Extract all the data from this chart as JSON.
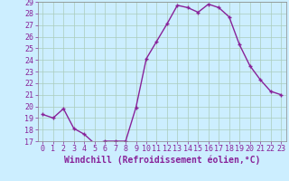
{
  "hours": [
    0,
    1,
    2,
    3,
    4,
    5,
    6,
    7,
    8,
    9,
    10,
    11,
    12,
    13,
    14,
    15,
    16,
    17,
    18,
    19,
    20,
    21,
    22,
    23
  ],
  "values": [
    19.3,
    19.0,
    19.8,
    18.1,
    17.6,
    16.8,
    17.0,
    17.0,
    17.0,
    19.9,
    24.1,
    25.6,
    27.1,
    28.7,
    28.5,
    28.1,
    28.8,
    28.5,
    27.7,
    25.3,
    23.5,
    22.3,
    21.3,
    21.0
  ],
  "line_color": "#882299",
  "marker": "+",
  "xlabel": "Windchill (Refroidissement éolien,°C)",
  "ylim": [
    17,
    29
  ],
  "xlim_min": -0.5,
  "xlim_max": 23.5,
  "yticks": [
    17,
    18,
    19,
    20,
    21,
    22,
    23,
    24,
    25,
    26,
    27,
    28,
    29
  ],
  "xticks": [
    0,
    1,
    2,
    3,
    4,
    5,
    6,
    7,
    8,
    9,
    10,
    11,
    12,
    13,
    14,
    15,
    16,
    17,
    18,
    19,
    20,
    21,
    22,
    23
  ],
  "xtick_labels": [
    "0",
    "1",
    "2",
    "3",
    "4",
    "5",
    "6",
    "7",
    "8",
    "9",
    "10",
    "11",
    "12",
    "13",
    "14",
    "15",
    "16",
    "17",
    "18",
    "19",
    "20",
    "21",
    "22",
    "23"
  ],
  "bg_color": "#cceeff",
  "grid_color": "#aaccbb",
  "spine_color": "#888888",
  "tick_color": "#882299",
  "label_color": "#882299",
  "xlabel_fontsize": 7,
  "tick_fontsize": 6,
  "linewidth": 1.0,
  "markersize": 3.5,
  "markeredgewidth": 1.0
}
